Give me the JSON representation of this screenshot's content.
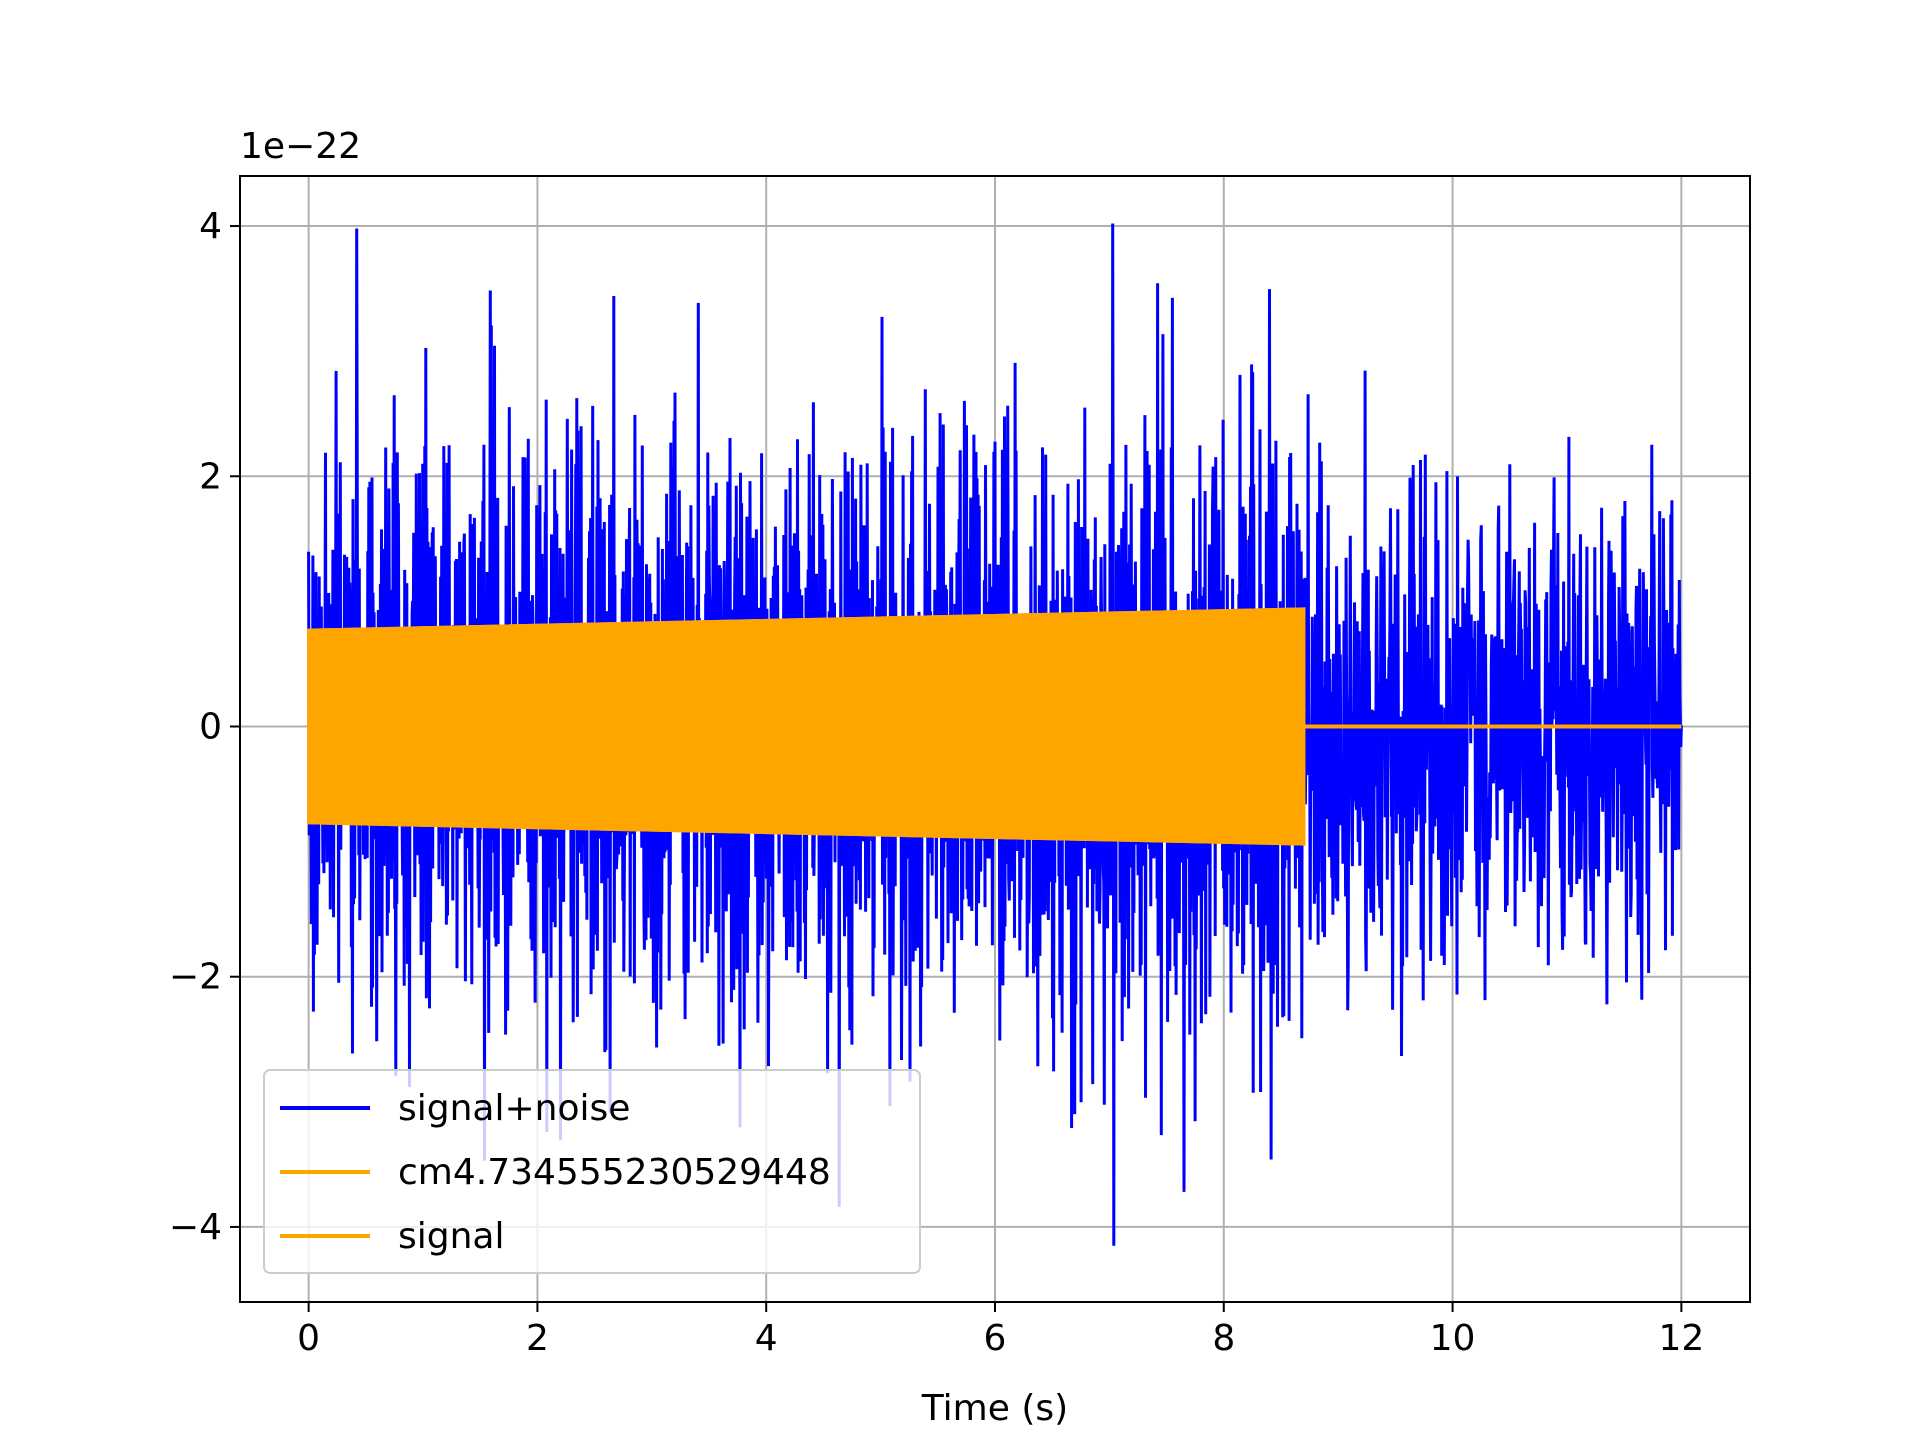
{
  "chart_data": {
    "type": "line",
    "title": "",
    "xlabel": "Time (s)",
    "ylabel": "",
    "y_offset_label": "1e−22",
    "xlim": [
      -0.6,
      12.6
    ],
    "ylim": [
      -4.6,
      4.4
    ],
    "x_ticks": [
      0,
      2,
      4,
      6,
      8,
      10,
      12
    ],
    "x_tick_labels": [
      "0",
      "2",
      "4",
      "6",
      "8",
      "10",
      "12"
    ],
    "y_ticks": [
      -4,
      -2,
      0,
      2,
      4
    ],
    "y_tick_labels": [
      "−4",
      "−2",
      "0",
      "2",
      "4"
    ],
    "grid": true,
    "legend_position": "lower-left",
    "series": [
      {
        "name": "signal+noise",
        "color": "#0000ff",
        "t_range": [
          0,
          12
        ],
        "rms_envelope": 0.9,
        "peak_max": 4.02,
        "peak_min": -4.15,
        "notable_peaks": [
          {
            "t": 0.42,
            "y": 3.98
          },
          {
            "t": 7.03,
            "y": 4.02
          },
          {
            "t": 7.04,
            "y": -4.15
          },
          {
            "t": 7.65,
            "y": -3.72
          }
        ]
      },
      {
        "name": "cm4.734555230529448",
        "color": "#ffa500",
        "t_range": [
          0,
          8.7
        ],
        "amplitude_start": 0.77,
        "amplitude_end": 0.94,
        "after_end_value": 0.0
      },
      {
        "name": "signal",
        "color": "#ffa500",
        "t_range": [
          0,
          12
        ],
        "amplitude_start": 0.77,
        "amplitude_end": 0.94,
        "merger_time": 8.7,
        "after_end_value": 0.0
      }
    ]
  }
}
